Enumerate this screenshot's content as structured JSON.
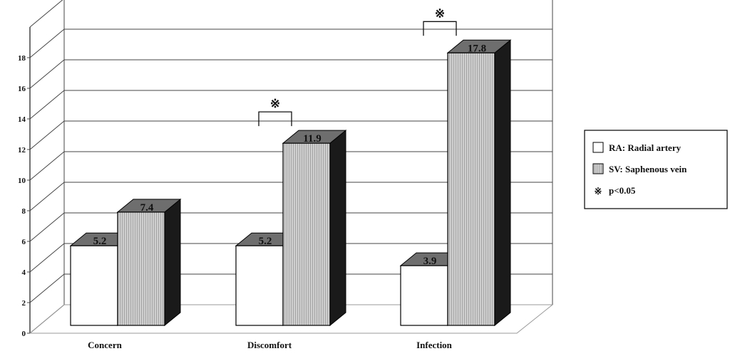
{
  "chart_data": {
    "type": "bar",
    "style": "3d-clustered",
    "categories": [
      "Concern",
      "Discomfort",
      "Infection"
    ],
    "series": [
      {
        "name": "RA: Radial artery",
        "values": [
          5.2,
          5.2,
          3.9
        ],
        "value_labels": [
          "5.2",
          "5.2",
          "3.9"
        ],
        "color": "#ffffff"
      },
      {
        "name": "SV: Saphenous vein",
        "values": [
          7.4,
          11.9,
          17.8
        ],
        "value_labels": [
          "7.4",
          "11.9",
          "17.8"
        ],
        "color": "#cfcfcf"
      }
    ],
    "yticks": [
      "0",
      "2",
      "4",
      "6",
      "8",
      "10",
      "12",
      "14",
      "16",
      "18"
    ],
    "ylim": [
      0,
      20
    ],
    "grid": true,
    "significance": {
      "categories": [
        "Discomfort",
        "Infection"
      ],
      "symbol": "※"
    },
    "legend": {
      "position": "right",
      "items": [
        {
          "marker": "box",
          "color": "#ffffff",
          "label": "RA: Radial artery"
        },
        {
          "marker": "box",
          "color": "#cfcfcf",
          "label": "SV: Saphenous vein"
        },
        {
          "marker": "symbol",
          "symbol": "※",
          "label": "p<0.05"
        }
      ]
    },
    "colors": {
      "top_face": "#6e6e6e",
      "side_face": "#1a1a1a",
      "grid": "#444444",
      "floor": "#999999"
    }
  }
}
